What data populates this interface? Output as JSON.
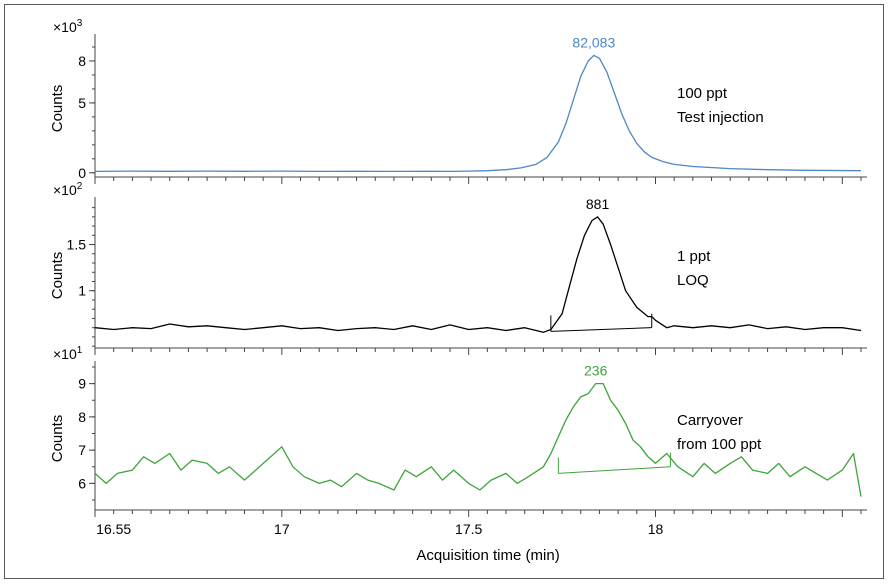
{
  "chart_data": [
    {
      "type": "line",
      "scale_base": "×10",
      "scale_exp": "3",
      "ylabel": "Counts",
      "yticks": [
        0,
        5,
        8
      ],
      "ytick_labels": [
        "0",
        "5",
        "8"
      ],
      "ylim": [
        -0.3,
        9.5
      ],
      "series": [
        {
          "color": "#4f86c6",
          "x": [
            16.5,
            16.6,
            16.7,
            16.8,
            16.9,
            17.0,
            17.1,
            17.2,
            17.3,
            17.4,
            17.45,
            17.5,
            17.55,
            17.6,
            17.64,
            17.68,
            17.71,
            17.74,
            17.76,
            17.78,
            17.8,
            17.82,
            17.835,
            17.85,
            17.87,
            17.89,
            17.91,
            17.93,
            17.95,
            17.97,
            17.99,
            18.02,
            18.05,
            18.1,
            18.2,
            18.3,
            18.4,
            18.55
          ],
          "y": [
            0.1,
            0.12,
            0.11,
            0.12,
            0.11,
            0.12,
            0.1,
            0.11,
            0.1,
            0.11,
            0.1,
            0.12,
            0.15,
            0.22,
            0.35,
            0.6,
            1.1,
            2.2,
            3.5,
            5.2,
            6.9,
            8.0,
            8.4,
            8.2,
            7.2,
            5.7,
            4.2,
            3.0,
            2.1,
            1.5,
            1.1,
            0.8,
            0.6,
            0.45,
            0.3,
            0.22,
            0.18,
            0.15
          ]
        }
      ],
      "peak_label": "82,083",
      "peak_label_color": "#4f86c6",
      "annotation": [
        "100 ppt",
        "Test injection"
      ]
    },
    {
      "type": "line",
      "scale_base": "×10",
      "scale_exp": "2",
      "ylabel": "Counts",
      "yticks": [
        1,
        1.5
      ],
      "ytick_labels": [
        "1",
        "1.5"
      ],
      "ylim": [
        0.38,
        1.95
      ],
      "series": [
        {
          "color": "#000000",
          "x": [
            16.5,
            16.55,
            16.6,
            16.65,
            16.7,
            16.75,
            16.8,
            16.85,
            16.9,
            16.95,
            17.0,
            17.05,
            17.1,
            17.15,
            17.2,
            17.25,
            17.3,
            17.35,
            17.4,
            17.45,
            17.5,
            17.55,
            17.6,
            17.65,
            17.7,
            17.72,
            17.75,
            17.77,
            17.79,
            17.81,
            17.83,
            17.845,
            17.86,
            17.88,
            17.9,
            17.92,
            17.95,
            17.98,
            17.99,
            18.0,
            18.03,
            18.05,
            18.1,
            18.15,
            18.2,
            18.25,
            18.3,
            18.35,
            18.4,
            18.45,
            18.5,
            18.55
          ],
          "y": [
            0.6,
            0.58,
            0.6,
            0.59,
            0.64,
            0.61,
            0.62,
            0.6,
            0.58,
            0.6,
            0.62,
            0.59,
            0.6,
            0.57,
            0.59,
            0.6,
            0.58,
            0.62,
            0.58,
            0.63,
            0.58,
            0.6,
            0.57,
            0.6,
            0.55,
            0.58,
            0.75,
            1.05,
            1.35,
            1.6,
            1.76,
            1.8,
            1.72,
            1.5,
            1.25,
            1.0,
            0.82,
            0.72,
            0.72,
            0.68,
            0.6,
            0.62,
            0.6,
            0.62,
            0.6,
            0.63,
            0.59,
            0.61,
            0.58,
            0.6,
            0.6,
            0.57
          ]
        }
      ],
      "integration_baseline": {
        "x": [
          17.72,
          17.99
        ],
        "y": [
          0.56,
          0.6
        ]
      },
      "peak_label": "881",
      "peak_label_color": "#000000",
      "annotation": [
        "1 ppt",
        "LOQ"
      ]
    },
    {
      "type": "line",
      "scale_base": "×10",
      "scale_exp": "1",
      "ylabel": "Counts",
      "yticks": [
        6,
        7,
        8,
        9
      ],
      "ytick_labels": [
        "6",
        "7",
        "8",
        "9"
      ],
      "ylim": [
        5.2,
        9.5
      ],
      "xlabel": "Acquisition time (min)",
      "xticks": [
        16.55,
        17,
        17.5,
        18
      ],
      "xtick_labels": [
        "16.55",
        "17",
        "17.5",
        "18"
      ],
      "xlim": [
        16.5,
        18.55
      ],
      "series": [
        {
          "color": "#3ea53a",
          "x": [
            16.5,
            16.53,
            16.56,
            16.6,
            16.63,
            16.66,
            16.7,
            16.73,
            16.76,
            16.8,
            16.83,
            16.86,
            16.9,
            16.93,
            16.96,
            17.0,
            17.03,
            17.06,
            17.1,
            17.13,
            17.16,
            17.2,
            17.23,
            17.26,
            17.3,
            17.33,
            17.36,
            17.4,
            17.43,
            17.46,
            17.5,
            17.53,
            17.56,
            17.6,
            17.63,
            17.66,
            17.7,
            17.72,
            17.74,
            17.76,
            17.78,
            17.8,
            17.82,
            17.84,
            17.86,
            17.88,
            17.9,
            17.92,
            17.94,
            17.96,
            17.98,
            18.0,
            18.03,
            18.06,
            18.1,
            18.13,
            18.16,
            18.2,
            18.23,
            18.26,
            18.3,
            18.33,
            18.36,
            18.4,
            18.43,
            18.46,
            18.5,
            18.53,
            18.55
          ],
          "y": [
            6.3,
            6.0,
            6.3,
            6.4,
            6.8,
            6.6,
            6.9,
            6.4,
            6.7,
            6.6,
            6.3,
            6.5,
            6.1,
            6.4,
            6.7,
            7.1,
            6.5,
            6.2,
            6.0,
            6.1,
            5.9,
            6.3,
            6.1,
            6.0,
            5.8,
            6.4,
            6.2,
            6.5,
            6.1,
            6.4,
            6.0,
            5.8,
            6.1,
            6.3,
            6.0,
            6.2,
            6.5,
            6.9,
            7.4,
            7.9,
            8.3,
            8.6,
            8.7,
            9.0,
            9.0,
            8.5,
            8.2,
            7.8,
            7.3,
            7.1,
            6.8,
            6.6,
            6.9,
            6.5,
            6.2,
            6.6,
            6.3,
            6.6,
            6.8,
            6.4,
            6.3,
            6.6,
            6.2,
            6.5,
            6.3,
            6.1,
            6.4,
            6.9,
            5.6
          ]
        }
      ],
      "integration_baseline": {
        "x": [
          17.74,
          18.04
        ],
        "y": [
          6.3,
          6.5
        ]
      },
      "peak_label": "236",
      "peak_label_color": "#3ea53a",
      "annotation": [
        "Carryover",
        "from 100 ppt"
      ]
    }
  ]
}
